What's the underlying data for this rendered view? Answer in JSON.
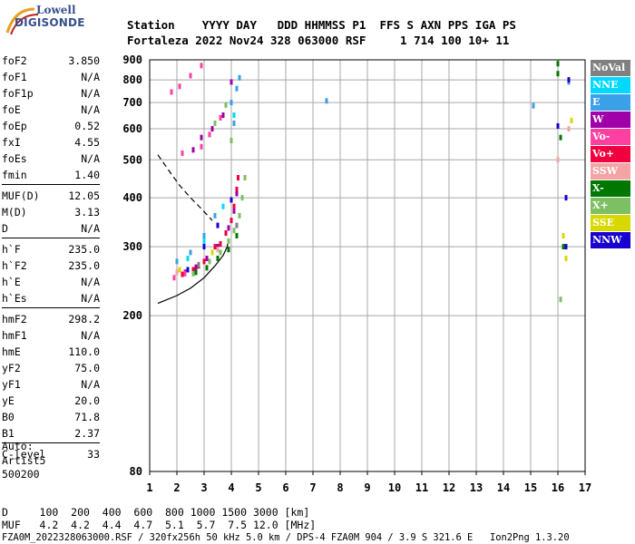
{
  "logo": {
    "line1": "Lowell",
    "line2": "DIGISONDE"
  },
  "header": {
    "line1": "Station    YYYY DAY   DDD HHMMSS P1  FFS S AXN PPS IGA PS",
    "line2": "Fortaleza 2022 Nov24 328 063000 RSF     1 714 100 10+ 11"
  },
  "params_groups": [
    [
      {
        "k": "foF2",
        "v": "3.850"
      },
      {
        "k": "foF1",
        "v": "N/A"
      },
      {
        "k": "foF1p",
        "v": "N/A"
      },
      {
        "k": "foE",
        "v": "N/A"
      },
      {
        "k": "foEp",
        "v": "0.52"
      },
      {
        "k": "fxI",
        "v": "4.55"
      },
      {
        "k": "foEs",
        "v": "N/A"
      },
      {
        "k": "fmin",
        "v": "1.40"
      }
    ],
    [
      {
        "k": "MUF(D)",
        "v": "12.05"
      },
      {
        "k": "M(D)",
        "v": "3.13"
      },
      {
        "k": "D",
        "v": "N/A"
      }
    ],
    [
      {
        "k": "h`F",
        "v": "235.0"
      },
      {
        "k": "h`F2",
        "v": "235.0"
      },
      {
        "k": "h`E",
        "v": "N/A"
      },
      {
        "k": "h`Es",
        "v": "N/A"
      }
    ],
    [
      {
        "k": "hmF2",
        "v": "298.2"
      },
      {
        "k": "hmF1",
        "v": "N/A"
      },
      {
        "k": "hmE",
        "v": "110.0"
      },
      {
        "k": "yF2",
        "v": "75.0"
      },
      {
        "k": "yF1",
        "v": "N/A"
      },
      {
        "k": "yE",
        "v": "20.0"
      },
      {
        "k": "B0",
        "v": "71.8"
      },
      {
        "k": "B1",
        "v": "2.37"
      }
    ],
    [
      {
        "k": "C-level",
        "v": "33"
      }
    ]
  ],
  "auto": {
    "line1": "Auto:",
    "line2": "Artist5",
    "line3": "500200"
  },
  "legend": [
    {
      "label": "NoVal",
      "color": "#808080"
    },
    {
      "label": "NNE",
      "color": "#00d8ff"
    },
    {
      "label": "E",
      "color": "#3aa0e8"
    },
    {
      "label": "W",
      "color": "#a000a8"
    },
    {
      "label": "Vo-",
      "color": "#ff40a0"
    },
    {
      "label": "Vo+",
      "color": "#f0003c"
    },
    {
      "label": "SSW",
      "color": "#f4a4a4"
    },
    {
      "label": "X-",
      "color": "#007800"
    },
    {
      "label": "X+",
      "color": "#7cbf64"
    },
    {
      "label": "SSE",
      "color": "#d8d800"
    },
    {
      "label": "NNW",
      "color": "#1800d0"
    }
  ],
  "footer": {
    "line1": "D     100  200  400  600  800 1000 1500 3000 [km]",
    "line2": "MUF   4.2  4.2  4.4  4.7  5.1  5.7  7.5 12.0 [MHz]",
    "line3": "FZA0M_2022328063000.RSF / 320fx256h 50 kHz 5.0 km / DPS-4 FZA0M 904 / 3.9 S 321.6 E   Ion2Png 1.3.20"
  },
  "chart_data": {
    "type": "scatter",
    "xlim": [
      1,
      17
    ],
    "ylim": [
      80,
      900
    ],
    "y_scale": "log",
    "x_ticks": [
      1,
      2,
      3,
      4,
      5,
      6,
      7,
      8,
      9,
      10,
      11,
      12,
      13,
      14,
      15,
      16,
      17
    ],
    "y_ticks": [
      80,
      200,
      300,
      400,
      500,
      600,
      700,
      800,
      900
    ],
    "grid": true,
    "series": [
      {
        "name": "Vo+",
        "color": "#f0003c",
        "points": [
          [
            2.2,
            255
          ],
          [
            2.6,
            262
          ],
          [
            3.0,
            275
          ],
          [
            3.3,
            290
          ],
          [
            3.6,
            305
          ],
          [
            3.8,
            325
          ],
          [
            4.0,
            350
          ],
          [
            4.1,
            380
          ],
          [
            4.2,
            420
          ],
          [
            4.25,
            450
          ],
          [
            2.8,
            268
          ],
          [
            3.4,
            300
          ]
        ]
      },
      {
        "name": "W",
        "color": "#a000a8",
        "points": [
          [
            2.3,
            258
          ],
          [
            2.7,
            266
          ],
          [
            3.1,
            280
          ],
          [
            3.5,
            300
          ],
          [
            3.9,
            335
          ],
          [
            4.1,
            370
          ],
          [
            4.2,
            410
          ],
          [
            2.9,
            570
          ],
          [
            3.3,
            600
          ],
          [
            3.7,
            650
          ],
          [
            2.6,
            530
          ],
          [
            4.0,
            790
          ]
        ]
      },
      {
        "name": "Vo-",
        "color": "#ff40a0",
        "points": [
          [
            1.9,
            250
          ],
          [
            2.3,
            256
          ],
          [
            2.9,
            540
          ],
          [
            3.2,
            580
          ],
          [
            3.6,
            640
          ],
          [
            1.8,
            745
          ],
          [
            2.1,
            770
          ],
          [
            2.5,
            820
          ],
          [
            2.9,
            870
          ],
          [
            2.2,
            520
          ]
        ]
      },
      {
        "name": "X+",
        "color": "#7cbf64",
        "points": [
          [
            2.6,
            256
          ],
          [
            3.2,
            275
          ],
          [
            3.6,
            290
          ],
          [
            3.9,
            310
          ],
          [
            4.1,
            330
          ],
          [
            4.3,
            360
          ],
          [
            4.4,
            400
          ],
          [
            4.5,
            450
          ],
          [
            3.4,
            620
          ],
          [
            3.8,
            690
          ],
          [
            4.0,
            560
          ],
          [
            16.1,
            220
          ]
        ]
      },
      {
        "name": "X-",
        "color": "#007800",
        "points": [
          [
            2.7,
            258
          ],
          [
            3.1,
            265
          ],
          [
            3.5,
            280
          ],
          [
            3.9,
            295
          ],
          [
            4.2,
            320
          ],
          [
            16.0,
            880
          ],
          [
            16.0,
            830
          ],
          [
            16.1,
            570
          ],
          [
            16.2,
            300
          ]
        ]
      },
      {
        "name": "E",
        "color": "#3aa0e8",
        "points": [
          [
            2.0,
            275
          ],
          [
            2.5,
            290
          ],
          [
            3.0,
            320
          ],
          [
            3.4,
            360
          ],
          [
            4.0,
            700
          ],
          [
            4.2,
            760
          ],
          [
            4.3,
            810
          ],
          [
            4.1,
            620
          ],
          [
            7.5,
            707
          ],
          [
            15.1,
            687
          ],
          [
            16.4,
            790
          ]
        ]
      },
      {
        "name": "NNW",
        "color": "#1800d0",
        "points": [
          [
            2.4,
            262
          ],
          [
            3.0,
            300
          ],
          [
            3.5,
            340
          ],
          [
            4.0,
            395
          ],
          [
            16.0,
            610
          ],
          [
            16.3,
            400
          ],
          [
            16.3,
            300
          ],
          [
            16.4,
            800
          ]
        ]
      },
      {
        "name": "NNE",
        "color": "#00d8ff",
        "points": [
          [
            2.4,
            280
          ],
          [
            3.0,
            310
          ],
          [
            3.7,
            380
          ],
          [
            4.1,
            650
          ]
        ]
      },
      {
        "name": "SSE",
        "color": "#d8d800",
        "points": [
          [
            2.1,
            262
          ],
          [
            3.3,
            290
          ],
          [
            16.2,
            320
          ],
          [
            16.3,
            280
          ],
          [
            16.5,
            630
          ]
        ]
      },
      {
        "name": "SSW",
        "color": "#f4a4a4",
        "points": [
          [
            2.0,
            258
          ],
          [
            3.5,
            295
          ],
          [
            16.0,
            500
          ],
          [
            16.4,
            600
          ]
        ]
      },
      {
        "name": "NoVal",
        "color": "#808080",
        "points": [
          [
            2.8,
            270
          ],
          [
            4.2,
            340
          ]
        ]
      }
    ],
    "lines": [
      {
        "name": "profile",
        "style": "solid",
        "points": [
          [
            1.3,
            215
          ],
          [
            2.0,
            225
          ],
          [
            2.5,
            235
          ],
          [
            3.0,
            250
          ],
          [
            3.4,
            268
          ],
          [
            3.7,
            285
          ],
          [
            3.85,
            300
          ],
          [
            3.88,
            310
          ]
        ]
      },
      {
        "name": "virtual-trace",
        "style": "dashed",
        "points": [
          [
            1.3,
            515
          ],
          [
            1.7,
            470
          ],
          [
            2.1,
            430
          ],
          [
            2.5,
            400
          ],
          [
            2.9,
            375
          ],
          [
            3.3,
            350
          ]
        ]
      }
    ]
  }
}
